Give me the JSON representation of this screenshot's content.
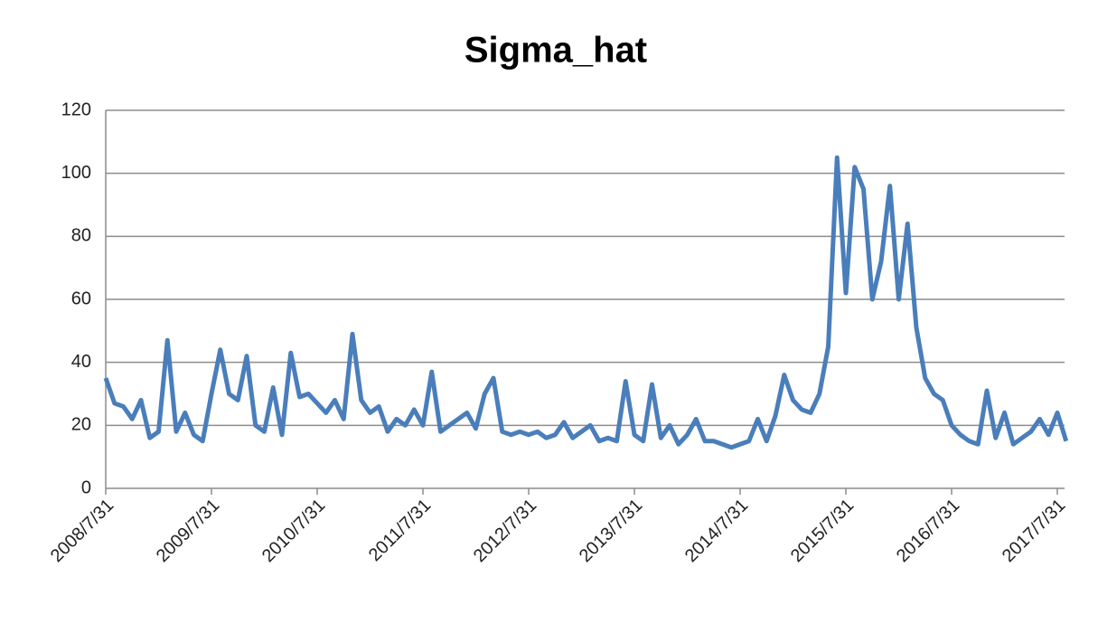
{
  "chart_data": {
    "type": "line",
    "title": "Sigma_hat",
    "categories": [
      "2008/7/31",
      null,
      null,
      null,
      null,
      null,
      null,
      null,
      null,
      null,
      null,
      null,
      "2009/7/31",
      null,
      null,
      null,
      null,
      null,
      null,
      null,
      null,
      null,
      null,
      null,
      "2010/7/31",
      null,
      null,
      null,
      null,
      null,
      null,
      null,
      null,
      null,
      null,
      null,
      "2011/7/31",
      null,
      null,
      null,
      null,
      null,
      null,
      null,
      null,
      null,
      null,
      null,
      "2012/7/31",
      null,
      null,
      null,
      null,
      null,
      null,
      null,
      null,
      null,
      null,
      null,
      "2013/7/31",
      null,
      null,
      null,
      null,
      null,
      null,
      null,
      null,
      null,
      null,
      null,
      "2014/7/31",
      null,
      null,
      null,
      null,
      null,
      null,
      null,
      null,
      null,
      null,
      null,
      "2015/7/31",
      null,
      null,
      null,
      null,
      null,
      null,
      null,
      null,
      null,
      null,
      null,
      "2016/7/31",
      null,
      null,
      null,
      null,
      null,
      null,
      null,
      null,
      null,
      null,
      null,
      "2017/7/31",
      null
    ],
    "values": [
      35,
      27,
      26,
      22,
      28,
      16,
      18,
      47,
      18,
      24,
      17,
      15,
      30,
      44,
      30,
      28,
      42,
      20,
      18,
      32,
      17,
      43,
      29,
      30,
      27,
      24,
      28,
      22,
      49,
      28,
      24,
      26,
      18,
      22,
      20,
      25,
      20,
      37,
      18,
      20,
      22,
      24,
      19,
      30,
      35,
      18,
      17,
      18,
      17,
      18,
      16,
      17,
      21,
      16,
      18,
      20,
      15,
      16,
      15,
      34,
      17,
      15,
      33,
      16,
      20,
      14,
      17,
      22,
      15,
      15,
      14,
      13,
      14,
      15,
      22,
      15,
      23,
      36,
      28,
      25,
      24,
      30,
      45,
      105,
      62,
      102,
      95,
      60,
      72,
      96,
      60,
      84,
      51,
      35,
      30,
      28,
      20,
      17,
      15,
      14,
      31,
      16,
      24,
      14,
      16,
      18,
      22,
      17,
      24,
      15
    ],
    "color": "#4a7ebb",
    "ylim": [
      0,
      120
    ],
    "yticks": [
      0,
      20,
      40,
      60,
      80,
      100,
      120
    ],
    "grid": true
  }
}
